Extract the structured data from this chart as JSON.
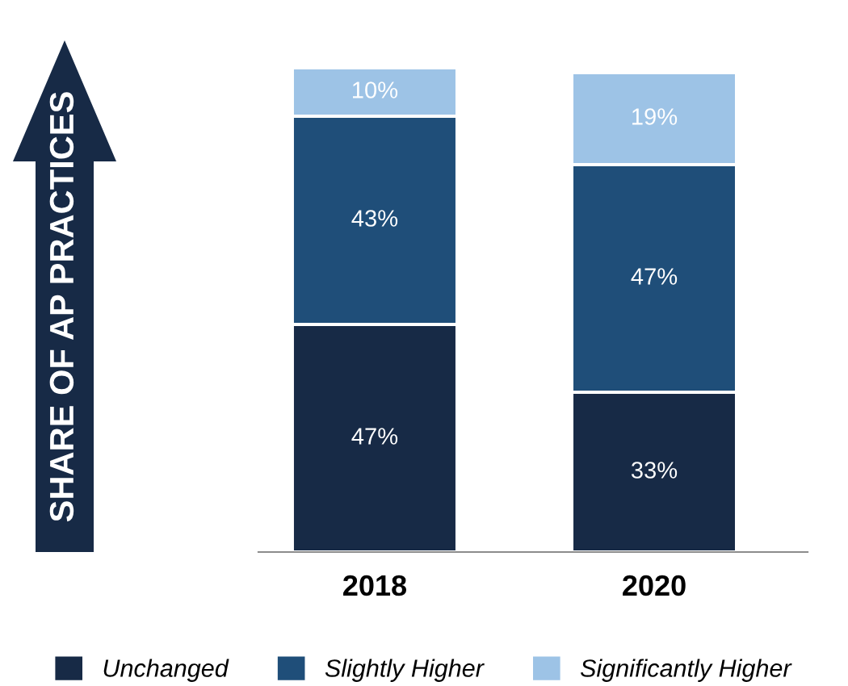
{
  "chart_data": {
    "type": "bar",
    "stacked": true,
    "annotations": [
      "SHARE OF AP PRACTICES"
    ],
    "categories": [
      "2018",
      "2020"
    ],
    "series": [
      {
        "name": "Unchanged",
        "color": "#172a46",
        "values": [
          47,
          33
        ],
        "value_labels": [
          "47%",
          "33%"
        ]
      },
      {
        "name": "Slightly Higher",
        "color": "#1f4e79",
        "values": [
          43,
          47
        ],
        "value_labels": [
          "43%",
          "47%"
        ]
      },
      {
        "name": "Significantly Higher",
        "color": "#9dc3e6",
        "values": [
          10,
          19
        ],
        "value_labels": [
          "10%",
          "19%"
        ]
      }
    ],
    "legend": "bottom",
    "grid": false
  }
}
